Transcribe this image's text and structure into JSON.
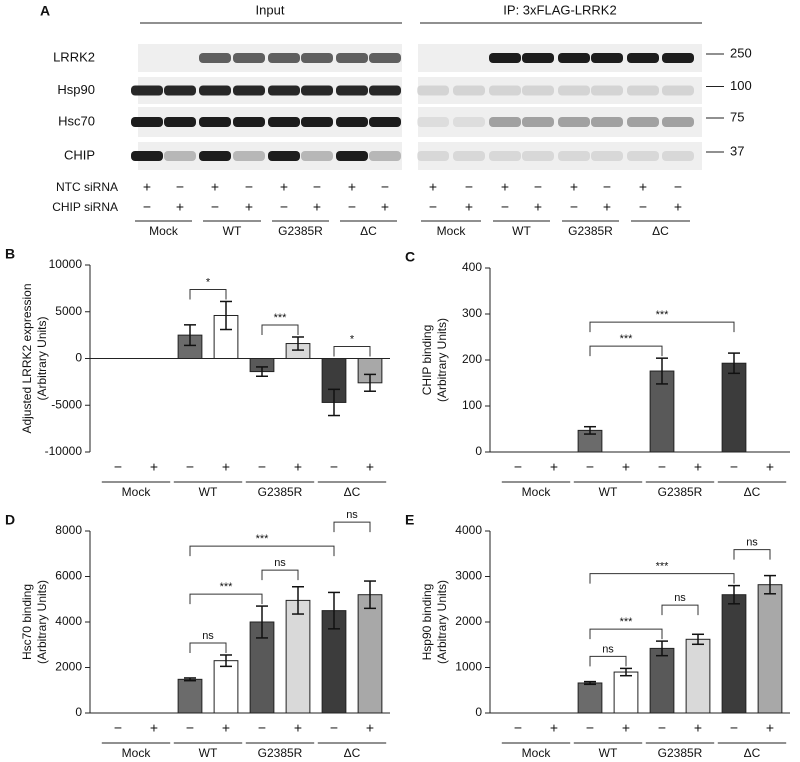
{
  "panel_a": {
    "label": "A",
    "headers": [
      "Input",
      "IP: 3xFLAG-LRRK2"
    ],
    "rows": [
      "LRRK2",
      "Hsp90",
      "Hsc70",
      "CHIP"
    ],
    "markers": [
      250,
      100,
      75,
      37
    ],
    "conditions": [
      {
        "name": "NTC siRNA",
        "signs": [
          "+",
          "−",
          "+",
          "−",
          "+",
          "−",
          "+",
          "−",
          "+",
          "−",
          "+",
          "−",
          "+",
          "−",
          "+",
          "−"
        ]
      },
      {
        "name": "CHIP siRNA",
        "signs": [
          "−",
          "+",
          "−",
          "+",
          "−",
          "+",
          "−",
          "+",
          "−",
          "+",
          "−",
          "+",
          "−",
          "+",
          "−",
          "+"
        ]
      }
    ],
    "groups": [
      "Mock",
      "WT",
      "G2385R",
      "ΔC",
      "Mock",
      "WT",
      "G2385R",
      "ΔC"
    ]
  },
  "chart_data": [
    {
      "type": "bar",
      "label": "B",
      "ylabel": [
        "Adjusted LRRK2 expression",
        "(Arbitrary Units)"
      ],
      "categories": [
        "−",
        "+",
        "−",
        "+",
        "−",
        "+",
        "−",
        "+"
      ],
      "groups": [
        "Mock",
        "WT",
        "G2385R",
        "ΔC"
      ],
      "values": [
        0,
        0,
        2500,
        4600,
        -1400,
        1600,
        -4700,
        -2600
      ],
      "errors": [
        null,
        null,
        1100,
        1500,
        500,
        700,
        1400,
        900
      ],
      "colors": [
        "#6b6b6b",
        "#ffffff",
        "#6b6b6b",
        "#ffffff",
        "#595959",
        "#d9d9d9",
        "#3c3c3c",
        "#a8a8a8"
      ],
      "ylim": [
        -10000,
        10000
      ],
      "yticks": [
        -10000,
        -5000,
        0,
        5000,
        10000
      ],
      "annotations": [
        {
          "text": "*",
          "bars": [
            2,
            3
          ]
        },
        {
          "text": "***",
          "bars": [
            4,
            5
          ]
        },
        {
          "text": "*",
          "bars": [
            6,
            7
          ]
        }
      ]
    },
    {
      "type": "bar",
      "label": "C",
      "ylabel": [
        "CHIP binding",
        "(Arbitrary Units)"
      ],
      "categories": [
        "−",
        "+",
        "−",
        "+",
        "−",
        "+",
        "−",
        "+"
      ],
      "groups": [
        "Mock",
        "WT",
        "G2385R",
        "ΔC"
      ],
      "values": [
        0,
        0,
        47,
        0,
        176,
        0,
        193,
        0
      ],
      "errors": [
        null,
        null,
        8,
        null,
        28,
        null,
        22,
        null
      ],
      "colors": [
        "#6b6b6b",
        "#ffffff",
        "#6b6b6b",
        "#ffffff",
        "#595959",
        "#d9d9d9",
        "#3c3c3c",
        "#a8a8a8"
      ],
      "ylim": [
        0,
        400
      ],
      "yticks": [
        0,
        100,
        200,
        300,
        400
      ],
      "annotations": [
        {
          "text": "***",
          "bars": [
            2,
            4
          ]
        },
        {
          "text": "***",
          "bars": [
            2,
            6
          ]
        }
      ]
    },
    {
      "type": "bar",
      "label": "D",
      "ylabel": [
        "Hsc70 binding",
        "(Arbitrary Units)"
      ],
      "categories": [
        "−",
        "+",
        "−",
        "+",
        "−",
        "+",
        "−",
        "+"
      ],
      "groups": [
        "Mock",
        "WT",
        "G2385R",
        "ΔC"
      ],
      "values": [
        0,
        0,
        1480,
        2300,
        4000,
        4950,
        4500,
        5200
      ],
      "errors": [
        null,
        null,
        60,
        250,
        700,
        600,
        800,
        600
      ],
      "colors": [
        "#6b6b6b",
        "#ffffff",
        "#6b6b6b",
        "#ffffff",
        "#595959",
        "#d9d9d9",
        "#3c3c3c",
        "#a8a8a8"
      ],
      "ylim": [
        0,
        8000
      ],
      "yticks": [
        0,
        2000,
        4000,
        6000,
        8000
      ],
      "annotations": [
        {
          "text": "ns",
          "bars": [
            2,
            3
          ]
        },
        {
          "text": "***",
          "bars": [
            2,
            4
          ]
        },
        {
          "text": "ns",
          "bars": [
            4,
            5
          ]
        },
        {
          "text": "***",
          "bars": [
            2,
            6
          ]
        },
        {
          "text": "ns",
          "bars": [
            6,
            7
          ]
        }
      ]
    },
    {
      "type": "bar",
      "label": "E",
      "ylabel": [
        "Hsp90 binding",
        "(Arbitrary Units)"
      ],
      "categories": [
        "−",
        "+",
        "−",
        "+",
        "−",
        "+",
        "−",
        "+"
      ],
      "groups": [
        "Mock",
        "WT",
        "G2385R",
        "ΔC"
      ],
      "values": [
        0,
        0,
        660,
        900,
        1420,
        1620,
        2600,
        2820
      ],
      "errors": [
        null,
        null,
        30,
        80,
        160,
        110,
        200,
        200
      ],
      "colors": [
        "#6b6b6b",
        "#ffffff",
        "#6b6b6b",
        "#ffffff",
        "#595959",
        "#d9d9d9",
        "#3c3c3c",
        "#a8a8a8"
      ],
      "ylim": [
        0,
        4000
      ],
      "yticks": [
        0,
        1000,
        2000,
        3000,
        4000
      ],
      "annotations": [
        {
          "text": "ns",
          "bars": [
            2,
            3
          ]
        },
        {
          "text": "***",
          "bars": [
            2,
            4
          ]
        },
        {
          "text": "ns",
          "bars": [
            4,
            5
          ]
        },
        {
          "text": "***",
          "bars": [
            2,
            6
          ]
        },
        {
          "text": "ns",
          "bars": [
            6,
            7
          ]
        }
      ]
    }
  ]
}
